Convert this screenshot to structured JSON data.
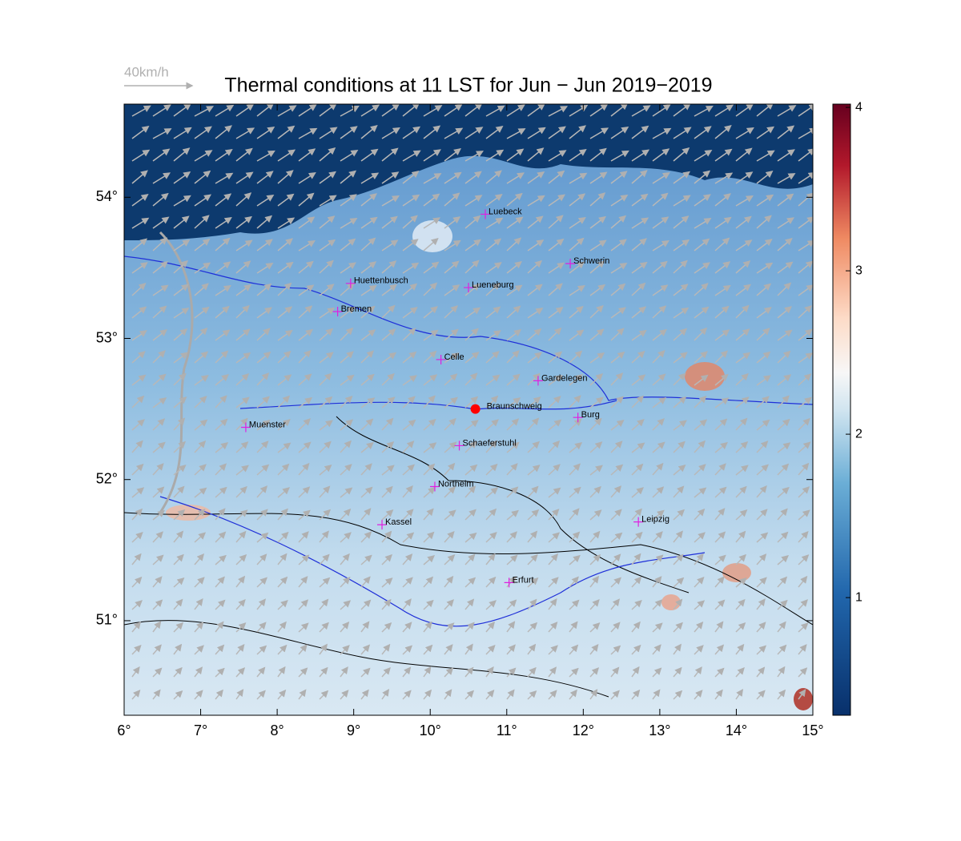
{
  "chart_data": {
    "type": "map",
    "title": "Thermal conditions at 11 LST for Jun − Jun  2019−2019",
    "wind_reference": "40km/h",
    "xlim": [
      6,
      15
    ],
    "ylim": [
      50.33,
      54.66
    ],
    "xticks": [
      {
        "value": 6,
        "label": "6°"
      },
      {
        "value": 7,
        "label": "7°"
      },
      {
        "value": 8,
        "label": "8°"
      },
      {
        "value": 9,
        "label": "9°"
      },
      {
        "value": 10,
        "label": "10°"
      },
      {
        "value": 11,
        "label": "11°"
      },
      {
        "value": 12,
        "label": "12°"
      },
      {
        "value": 13,
        "label": "13°"
      },
      {
        "value": 14,
        "label": "14°"
      },
      {
        "value": 15,
        "label": "15°"
      }
    ],
    "yticks": [
      {
        "value": 51,
        "label": "51°"
      },
      {
        "value": 52,
        "label": "52°"
      },
      {
        "value": 53,
        "label": "53°"
      },
      {
        "value": 54,
        "label": "54°"
      }
    ],
    "colorbar": {
      "lim": [
        0.28,
        4.02
      ],
      "ticks": [
        1,
        2,
        3,
        4
      ]
    },
    "cities": [
      {
        "name": "Luebeck",
        "lon": 10.72,
        "lat": 53.88,
        "color": "#e020e0"
      },
      {
        "name": "Schwerin",
        "lon": 11.83,
        "lat": 53.53,
        "color": "#e020e0"
      },
      {
        "name": "Huettenbusch",
        "lon": 8.96,
        "lat": 53.39,
        "color": "#e020e0"
      },
      {
        "name": "Lueneburg",
        "lon": 10.5,
        "lat": 53.36,
        "color": "#e020e0"
      },
      {
        "name": "Bremen",
        "lon": 8.79,
        "lat": 53.19,
        "color": "#e020e0"
      },
      {
        "name": "Celle",
        "lon": 10.14,
        "lat": 52.85,
        "color": "#e020e0"
      },
      {
        "name": "Gardelegen",
        "lon": 11.41,
        "lat": 52.7,
        "color": "#e020e0"
      },
      {
        "name": "Braunschweig",
        "lon": 10.59,
        "lat": 52.5,
        "color": "#ff0000"
      },
      {
        "name": "Burg",
        "lon": 11.93,
        "lat": 52.44,
        "color": "#e020e0"
      },
      {
        "name": "Muenster",
        "lon": 7.59,
        "lat": 52.37,
        "color": "#e020e0"
      },
      {
        "name": "Schaeferstuhl",
        "lon": 10.38,
        "lat": 52.24,
        "color": "#e020e0"
      },
      {
        "name": "Northeim",
        "lon": 10.06,
        "lat": 51.95,
        "color": "#e020e0"
      },
      {
        "name": "Kassel",
        "lon": 9.37,
        "lat": 51.68,
        "color": "#e020e0"
      },
      {
        "name": "Leipzig",
        "lon": 12.72,
        "lat": 51.7,
        "color": "#e020e0"
      },
      {
        "name": "Erfurt",
        "lon": 11.03,
        "lat": 51.27,
        "color": "#e020e0"
      }
    ]
  }
}
